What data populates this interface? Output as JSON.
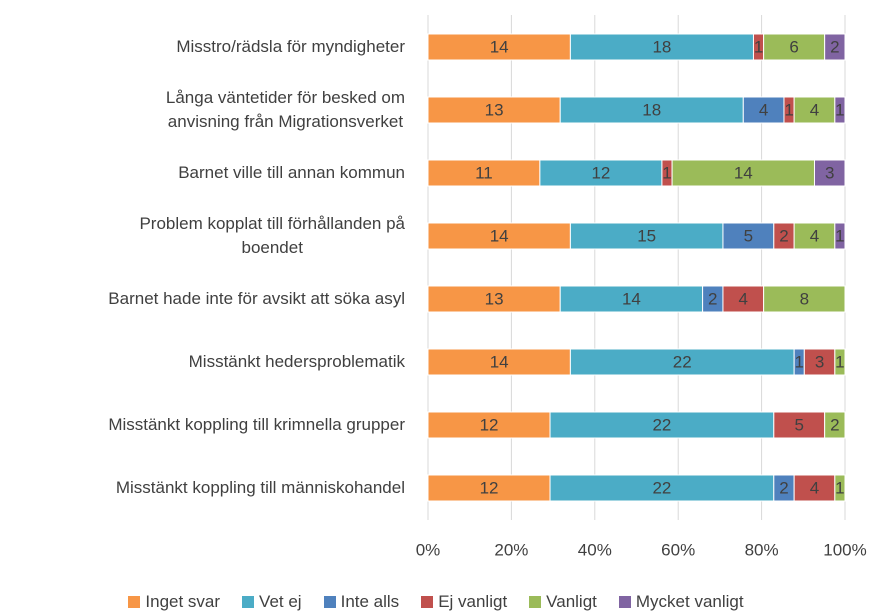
{
  "chart_data": {
    "type": "bar",
    "orientation": "horizontal",
    "stacked": "percent",
    "categories": [
      "Misstro/rädsla för myndigheter",
      "Långa väntetider för besked om\nanvisning från Migrationsverket",
      "Barnet ville till annan kommun",
      "Problem kopplat till förhållanden på\nboendet",
      "Barnet hade inte för avsikt att söka asyl",
      "Misstänkt hedersproblematik",
      "Misstänkt koppling till krimnella grupper",
      "Misstänkt koppling till människohandel"
    ],
    "series": [
      {
        "name": "Inget svar",
        "color": "#f79646",
        "values": [
          14,
          13,
          11,
          14,
          13,
          14,
          12,
          12
        ]
      },
      {
        "name": "Vet ej",
        "color": "#4bacc6",
        "values": [
          18,
          18,
          12,
          15,
          14,
          22,
          22,
          22
        ]
      },
      {
        "name": "Inte alls",
        "color": "#4f81bd",
        "values": [
          null,
          4,
          null,
          5,
          2,
          1,
          null,
          2
        ]
      },
      {
        "name": "Ej vanligt",
        "color": "#c0504d",
        "values": [
          1,
          1,
          1,
          2,
          4,
          3,
          5,
          4
        ]
      },
      {
        "name": "Vanligt",
        "color": "#9bbb59",
        "values": [
          6,
          4,
          14,
          4,
          8,
          1,
          2,
          1
        ]
      },
      {
        "name": "Mycket vanligt",
        "color": "#8064a2",
        "values": [
          2,
          1,
          3,
          1,
          null,
          null,
          null,
          null
        ]
      }
    ],
    "xlim": [
      0,
      100
    ],
    "xticks": [
      {
        "value": 0,
        "label": "0%"
      },
      {
        "value": 20,
        "label": "20%"
      },
      {
        "value": 40,
        "label": "40%"
      },
      {
        "value": 60,
        "label": "60%"
      },
      {
        "value": 80,
        "label": "80%"
      },
      {
        "value": 100,
        "label": "100%"
      }
    ],
    "grid": true,
    "legend": "bottom"
  }
}
